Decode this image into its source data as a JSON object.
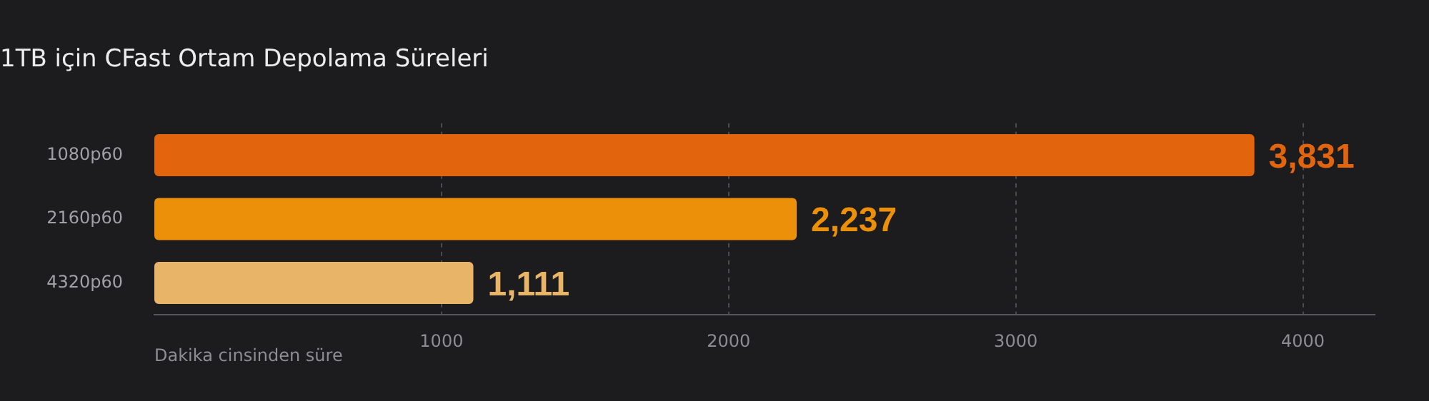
{
  "chart_data": {
    "type": "bar",
    "orientation": "horizontal",
    "title": "1TB için CFast Ortam Depolama Süreleri",
    "xlabel": "Dakika cinsinden süre",
    "categories": [
      "1080p60",
      "2160p60",
      "4320p60"
    ],
    "values": [
      3831,
      2237,
      1111
    ],
    "colors": [
      "#e2650e",
      "#ec900a",
      "#e8b468"
    ],
    "value_labels": [
      "3,831",
      "2,237",
      "1,111"
    ],
    "xlim": [
      0,
      4250
    ],
    "xticks": [
      1000,
      2000,
      3000,
      4000
    ],
    "grid": "x"
  }
}
